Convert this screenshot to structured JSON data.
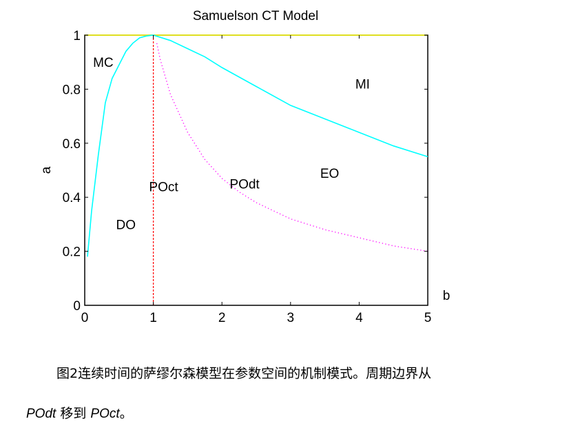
{
  "chart_data": {
    "type": "line",
    "title": "Samuelson CT Model",
    "xlabel": "b",
    "ylabel": "a",
    "xlim": [
      0,
      5
    ],
    "ylim": [
      0,
      1
    ],
    "xticks": [
      "0",
      "1",
      "2",
      "3",
      "4",
      "5"
    ],
    "yticks": [
      "0",
      "0.2",
      "0.4",
      "0.6",
      "0.8",
      "1"
    ],
    "grid": false,
    "series": [
      {
        "color": "#ffff00",
        "style": "solid",
        "x": [
          0,
          5
        ],
        "y": [
          1,
          1
        ]
      },
      {
        "color": "#00ffff",
        "style": "solid",
        "x": [
          0.04,
          0.1,
          0.2,
          0.3,
          0.4,
          0.5,
          0.6,
          0.7,
          0.8,
          0.9,
          1.0,
          1.25,
          1.5,
          1.75,
          2.0,
          2.5,
          3.0,
          3.5,
          4.0,
          4.5,
          5.0
        ],
        "y": [
          0.18,
          0.35,
          0.56,
          0.75,
          0.84,
          0.89,
          0.94,
          0.97,
          0.99,
          0.997,
          1.0,
          0.98,
          0.95,
          0.92,
          0.88,
          0.81,
          0.74,
          0.69,
          0.64,
          0.59,
          0.55
        ]
      },
      {
        "color": "#ff00ff",
        "style": "dotted",
        "x": [
          1.05,
          1.1,
          1.25,
          1.5,
          1.75,
          2.0,
          2.25,
          2.5,
          3.0,
          3.5,
          4.0,
          4.5,
          5.0
        ],
        "y": [
          0.97,
          0.91,
          0.78,
          0.64,
          0.54,
          0.47,
          0.42,
          0.38,
          0.32,
          0.28,
          0.25,
          0.22,
          0.2
        ]
      },
      {
        "color": "#ff0000",
        "style": "dashed",
        "x": [
          1,
          1
        ],
        "y": [
          0,
          1
        ]
      }
    ],
    "annotations": [
      {
        "text": "MC",
        "x": 0.27,
        "y": 0.9
      },
      {
        "text": "MI",
        "x": 4.05,
        "y": 0.82
      },
      {
        "text": "POct",
        "x": 1.15,
        "y": 0.44
      },
      {
        "text": "POdt",
        "x": 2.33,
        "y": 0.45
      },
      {
        "text": "EO",
        "x": 3.57,
        "y": 0.49
      },
      {
        "text": "DO",
        "x": 0.6,
        "y": 0.3
      }
    ]
  },
  "caption": {
    "line1": "图2连续时间的萨缪尔森模型在参数空间的机制模式。周期边界从",
    "from": "POdt",
    "mid": " 移到 ",
    "to": "POct",
    "end": "。"
  }
}
